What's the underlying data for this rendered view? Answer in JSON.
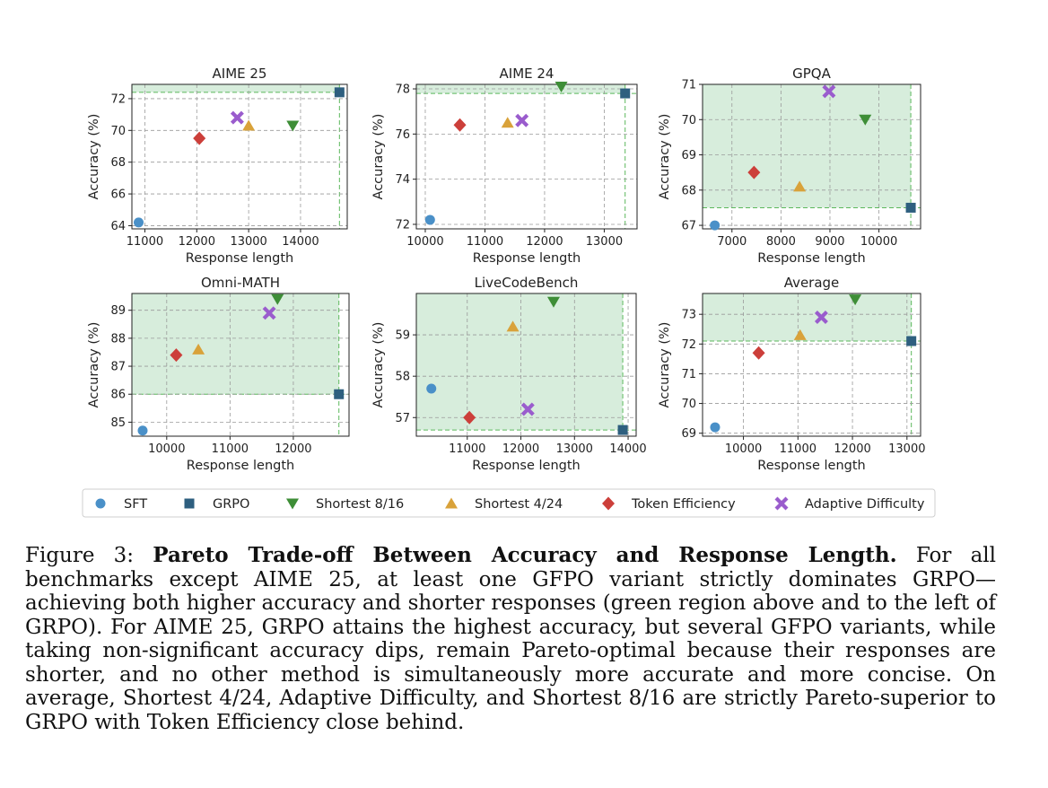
{
  "legend": [
    {
      "key": "sft",
      "label": "SFT",
      "marker": "circle",
      "color": "#4a90c8"
    },
    {
      "key": "grpo",
      "label": "GRPO",
      "marker": "square",
      "color": "#2e5f7f"
    },
    {
      "key": "s816",
      "label": "Shortest 8/16",
      "marker": "tri_down",
      "color": "#3e8e37"
    },
    {
      "key": "s424",
      "label": "Shortest 4/24",
      "marker": "tri_up",
      "color": "#d9a23a"
    },
    {
      "key": "tok",
      "label": "Token Efficiency",
      "marker": "diamond",
      "color": "#cc3f3a"
    },
    {
      "key": "adap",
      "label": "Adaptive Difficulty",
      "marker": "x",
      "color": "#9a5ccd"
    }
  ],
  "chart_data": [
    {
      "type": "scatter",
      "title": "AIME 25",
      "xlabel": "Response length",
      "ylabel": "Accuracy (%)",
      "xlim": [
        10750,
        14900
      ],
      "ylim": [
        63.8,
        72.9
      ],
      "xticks": [
        11000,
        12000,
        13000,
        14000
      ],
      "yticks": [
        64,
        66,
        68,
        70,
        72
      ],
      "region": {
        "x": [
          10750,
          14750
        ],
        "y": [
          72.4,
          72.9
        ]
      },
      "points": [
        {
          "series": "sft",
          "x": 10880,
          "y": 64.2
        },
        {
          "series": "grpo",
          "x": 14750,
          "y": 72.4
        },
        {
          "series": "s816",
          "x": 13850,
          "y": 70.3
        },
        {
          "series": "s424",
          "x": 13000,
          "y": 70.3
        },
        {
          "series": "tok",
          "x": 12050,
          "y": 69.5
        },
        {
          "series": "adap",
          "x": 12780,
          "y": 70.8
        }
      ]
    },
    {
      "type": "scatter",
      "title": "AIME 24",
      "xlabel": "Response length",
      "ylabel": "Accuracy (%)",
      "xlim": [
        9850,
        13550
      ],
      "ylim": [
        71.8,
        78.2
      ],
      "xticks": [
        10000,
        11000,
        12000,
        13000
      ],
      "yticks": [
        72,
        74,
        76,
        78
      ],
      "region": {
        "x": [
          9850,
          13350
        ],
        "y": [
          77.8,
          78.2
        ]
      },
      "points": [
        {
          "series": "sft",
          "x": 10080,
          "y": 72.2
        },
        {
          "series": "grpo",
          "x": 13350,
          "y": 77.8
        },
        {
          "series": "s816",
          "x": 12280,
          "y": 78.1
        },
        {
          "series": "s424",
          "x": 11380,
          "y": 76.5
        },
        {
          "series": "tok",
          "x": 10580,
          "y": 76.4
        },
        {
          "series": "adap",
          "x": 11620,
          "y": 76.6
        }
      ]
    },
    {
      "type": "scatter",
      "title": "GPQA",
      "xlabel": "Response length",
      "ylabel": "Accuracy (%)",
      "xlim": [
        6400,
        10850
      ],
      "ylim": [
        66.9,
        71.0
      ],
      "xticks": [
        7000,
        8000,
        9000,
        10000
      ],
      "yticks": [
        67,
        68,
        69,
        70,
        71
      ],
      "region": {
        "x": [
          6400,
          10650
        ],
        "y": [
          67.5,
          71.0
        ]
      },
      "points": [
        {
          "series": "sft",
          "x": 6650,
          "y": 67.0
        },
        {
          "series": "grpo",
          "x": 10650,
          "y": 67.5
        },
        {
          "series": "s816",
          "x": 9720,
          "y": 70.0
        },
        {
          "series": "s424",
          "x": 8380,
          "y": 68.1
        },
        {
          "series": "tok",
          "x": 7450,
          "y": 68.5
        },
        {
          "series": "adap",
          "x": 8980,
          "y": 70.8
        }
      ]
    },
    {
      "type": "scatter",
      "title": "Omni-MATH",
      "xlabel": "Response length",
      "ylabel": "Accuracy (%)",
      "xlim": [
        9450,
        12880
      ],
      "ylim": [
        84.5,
        89.6
      ],
      "xticks": [
        10000,
        11000,
        12000
      ],
      "yticks": [
        85,
        86,
        87,
        88,
        89
      ],
      "region": {
        "x": [
          9450,
          12720
        ],
        "y": [
          86.0,
          89.6
        ]
      },
      "points": [
        {
          "series": "sft",
          "x": 9620,
          "y": 84.7
        },
        {
          "series": "grpo",
          "x": 12720,
          "y": 86.0
        },
        {
          "series": "s816",
          "x": 11750,
          "y": 89.4
        },
        {
          "series": "s424",
          "x": 10500,
          "y": 87.6
        },
        {
          "series": "tok",
          "x": 10150,
          "y": 87.4
        },
        {
          "series": "adap",
          "x": 11620,
          "y": 88.9
        }
      ]
    },
    {
      "type": "scatter",
      "title": "LiveCodeBench",
      "xlabel": "Response length",
      "ylabel": "Accuracy (%)",
      "xlim": [
        10050,
        14150
      ],
      "ylim": [
        56.55,
        60.0
      ],
      "xticks": [
        11000,
        12000,
        13000,
        14000
      ],
      "yticks": [
        57,
        58,
        59
      ],
      "region": {
        "x": [
          10050,
          13900
        ],
        "y": [
          56.7,
          60.0
        ]
      },
      "points": [
        {
          "series": "sft",
          "x": 10330,
          "y": 57.7
        },
        {
          "series": "grpo",
          "x": 13900,
          "y": 56.7
        },
        {
          "series": "s816",
          "x": 12610,
          "y": 59.8
        },
        {
          "series": "s424",
          "x": 11850,
          "y": 59.2
        },
        {
          "series": "tok",
          "x": 11040,
          "y": 57.0
        },
        {
          "series": "adap",
          "x": 12130,
          "y": 57.2
        }
      ]
    },
    {
      "type": "scatter",
      "title": "Average",
      "xlabel": "Response length",
      "ylabel": "Accuracy (%)",
      "xlim": [
        9250,
        13250
      ],
      "ylim": [
        68.9,
        73.7
      ],
      "xticks": [
        10000,
        11000,
        12000,
        13000
      ],
      "yticks": [
        69,
        70,
        71,
        72,
        73
      ],
      "region": {
        "x": [
          9250,
          13080
        ],
        "y": [
          72.1,
          73.7
        ]
      },
      "points": [
        {
          "series": "sft",
          "x": 9480,
          "y": 69.2
        },
        {
          "series": "grpo",
          "x": 13080,
          "y": 72.1
        },
        {
          "series": "s816",
          "x": 12050,
          "y": 73.5
        },
        {
          "series": "s424",
          "x": 11040,
          "y": 72.3
        },
        {
          "series": "tok",
          "x": 10280,
          "y": 71.7
        },
        {
          "series": "adap",
          "x": 11430,
          "y": 72.9
        }
      ]
    }
  ],
  "caption": {
    "prefix": "Figure 3: ",
    "bold": "Pareto Trade-off Between Accuracy and Response Length.",
    "body": " For all benchmarks except AIME 25, at least one GFPO variant strictly dominates GRPO—achieving both higher accuracy and shorter responses (green region above and to the left of GRPO). For AIME 25, GRPO attains the highest accuracy, but several GFPO variants, while taking non-significant accuracy dips, remain Pareto-optimal because their responses are shorter, and no other method is simultaneously more accurate and more concise. On average, Shortest 4/24, Adaptive Difficulty, and Shortest 8/16 are strictly Pareto-superior to GRPO with Token Efficiency close behind."
  }
}
